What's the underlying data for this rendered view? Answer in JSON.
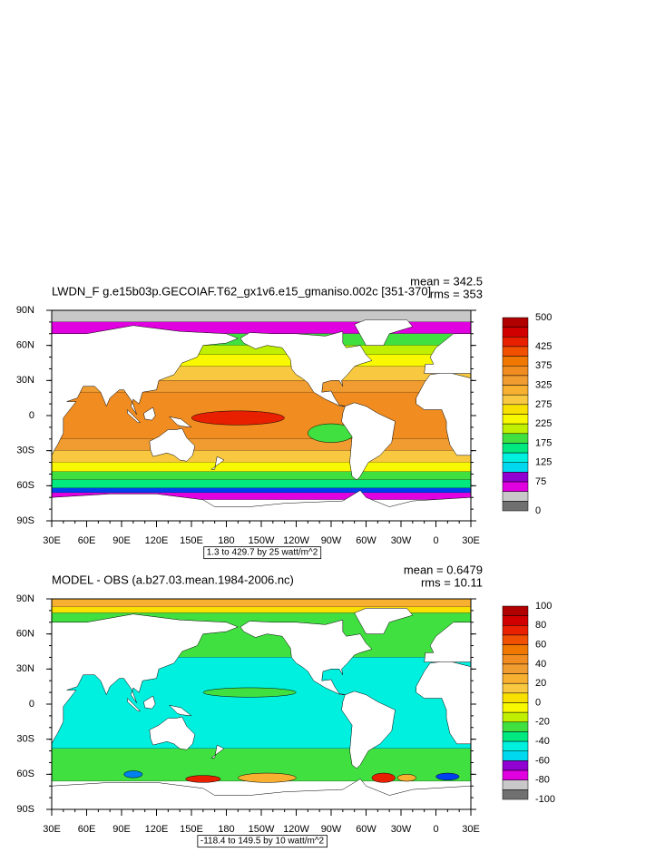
{
  "panels": [
    {
      "title": "LWDN_F g.e15b03p.GECOIAF.T62_gx1v6.e15_gmaniso.002c [351-370]",
      "mean": "mean = 342.5",
      "rms": "rms = 353",
      "lat_labels": [
        "90N",
        "60N",
        "30N",
        "0",
        "30S",
        "60S",
        "90S"
      ],
      "lon_labels": [
        "30E",
        "60E",
        "90E",
        "120E",
        "150E",
        "180",
        "150W",
        "120W",
        "90W",
        "60W",
        "30W",
        "0",
        "30E"
      ],
      "colorbar_labels": [
        "500",
        "425",
        "375",
        "325",
        "275",
        "225",
        "175",
        "125",
        "75",
        "0"
      ],
      "footer": "1.3 to 429.7 by 25 watt/m^2"
    },
    {
      "title": "MODEL - OBS (a.b27.03.mean.1984-2006.nc)",
      "mean": "mean = 0.6479",
      "rms": "rms = 10.11",
      "lat_labels": [
        "90N",
        "60N",
        "30N",
        "0",
        "30S",
        "60S",
        "90S"
      ],
      "lon_labels": [
        "30E",
        "60E",
        "90E",
        "120E",
        "150E",
        "180",
        "150W",
        "120W",
        "90W",
        "60W",
        "30W",
        "0",
        "30E"
      ],
      "colorbar_labels": [
        "100",
        "80",
        "60",
        "40",
        "20",
        "0",
        "-20",
        "-40",
        "-60",
        "-80",
        "-100"
      ],
      "footer": "-118.4 to 149.5 by 10 watt/m^2"
    }
  ]
}
